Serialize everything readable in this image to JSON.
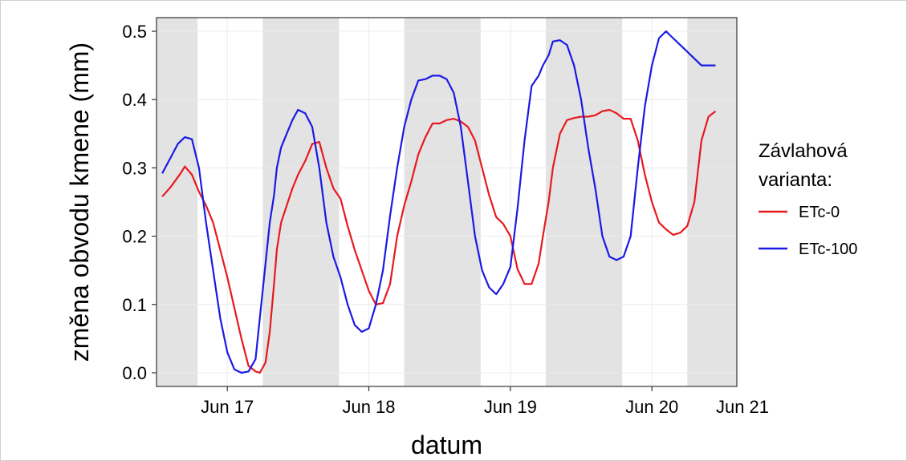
{
  "chart_data": {
    "type": "line",
    "xlabel": "datum",
    "ylabel": "změna obvodu kmene (mm)",
    "ylim": [
      -0.02,
      0.52
    ],
    "xlim": [
      0,
      4.1
    ],
    "y_ticks": [
      0.0,
      0.1,
      0.2,
      0.3,
      0.4,
      0.5
    ],
    "y_tick_labels": [
      "0.0",
      "0.1",
      "0.2",
      "0.3",
      "0.4",
      "0.5"
    ],
    "x_ticks": [
      0.5,
      1.5,
      2.5,
      3.5,
      4.5
    ],
    "x_tick_labels": [
      "Jun 17",
      "Jun 18",
      "Jun 19",
      "Jun 20",
      "Jun 21"
    ],
    "shaded_intervals": [
      [
        0,
        0.29
      ],
      [
        0.75,
        1.29
      ],
      [
        1.75,
        2.29
      ],
      [
        2.75,
        3.29
      ],
      [
        3.75,
        4.1
      ]
    ],
    "shade_color": "#e3e3e3",
    "legend": {
      "title_lines": [
        "Závlahová",
        "varianta:"
      ],
      "placement": "right"
    },
    "series": [
      {
        "name": "ETc-0",
        "color": "#e8191e",
        "x": [
          0.04,
          0.1,
          0.17,
          0.2,
          0.25,
          0.3,
          0.35,
          0.4,
          0.45,
          0.5,
          0.55,
          0.6,
          0.65,
          0.7,
          0.73,
          0.77,
          0.8,
          0.83,
          0.85,
          0.88,
          0.92,
          0.96,
          1.0,
          1.05,
          1.1,
          1.15,
          1.2,
          1.25,
          1.3,
          1.35,
          1.4,
          1.45,
          1.5,
          1.55,
          1.6,
          1.65,
          1.7,
          1.75,
          1.8,
          1.85,
          1.9,
          1.95,
          2.0,
          2.05,
          2.1,
          2.15,
          2.2,
          2.25,
          2.3,
          2.35,
          2.4,
          2.45,
          2.5,
          2.55,
          2.6,
          2.65,
          2.7,
          2.73,
          2.77,
          2.8,
          2.85,
          2.9,
          2.95,
          3.0,
          3.05,
          3.1,
          3.15,
          3.2,
          3.25,
          3.3,
          3.35,
          3.4,
          3.45,
          3.5,
          3.55,
          3.6,
          3.65,
          3.7,
          3.75,
          3.8,
          3.85,
          3.9,
          3.95
        ],
        "values": [
          0.258,
          0.272,
          0.292,
          0.302,
          0.29,
          0.265,
          0.245,
          0.22,
          0.18,
          0.14,
          0.095,
          0.05,
          0.01,
          0.002,
          0.0,
          0.015,
          0.06,
          0.13,
          0.18,
          0.22,
          0.245,
          0.27,
          0.29,
          0.31,
          0.335,
          0.338,
          0.3,
          0.27,
          0.255,
          0.215,
          0.18,
          0.15,
          0.12,
          0.1,
          0.102,
          0.13,
          0.2,
          0.245,
          0.28,
          0.32,
          0.345,
          0.365,
          0.365,
          0.37,
          0.372,
          0.368,
          0.36,
          0.34,
          0.3,
          0.26,
          0.228,
          0.218,
          0.2,
          0.152,
          0.13,
          0.13,
          0.16,
          0.2,
          0.25,
          0.3,
          0.35,
          0.37,
          0.373,
          0.375,
          0.375,
          0.377,
          0.383,
          0.385,
          0.38,
          0.372,
          0.372,
          0.34,
          0.29,
          0.25,
          0.22,
          0.21,
          0.202,
          0.205,
          0.215,
          0.25,
          0.34,
          0.375,
          0.383
        ]
      },
      {
        "name": "ETc-100",
        "color": "#1a1ae6",
        "x": [
          0.04,
          0.1,
          0.15,
          0.2,
          0.25,
          0.3,
          0.35,
          0.4,
          0.45,
          0.5,
          0.55,
          0.6,
          0.65,
          0.7,
          0.73,
          0.77,
          0.8,
          0.83,
          0.85,
          0.88,
          0.92,
          0.96,
          1.0,
          1.05,
          1.1,
          1.15,
          1.2,
          1.25,
          1.3,
          1.35,
          1.4,
          1.45,
          1.5,
          1.55,
          1.6,
          1.65,
          1.7,
          1.75,
          1.8,
          1.85,
          1.9,
          1.95,
          2.0,
          2.05,
          2.1,
          2.15,
          2.2,
          2.25,
          2.3,
          2.35,
          2.4,
          2.45,
          2.5,
          2.55,
          2.6,
          2.65,
          2.7,
          2.73,
          2.77,
          2.8,
          2.85,
          2.9,
          2.95,
          3.0,
          3.05,
          3.1,
          3.15,
          3.2,
          3.25,
          3.3,
          3.35,
          3.4,
          3.45,
          3.5,
          3.55,
          3.6,
          3.65,
          3.7,
          3.75,
          3.8,
          3.85,
          3.9,
          3.95
        ],
        "values": [
          0.292,
          0.315,
          0.335,
          0.345,
          0.342,
          0.3,
          0.22,
          0.15,
          0.08,
          0.03,
          0.005,
          0.0,
          0.002,
          0.02,
          0.08,
          0.16,
          0.22,
          0.26,
          0.3,
          0.33,
          0.35,
          0.37,
          0.385,
          0.38,
          0.36,
          0.3,
          0.22,
          0.17,
          0.14,
          0.1,
          0.07,
          0.06,
          0.065,
          0.1,
          0.15,
          0.23,
          0.3,
          0.36,
          0.4,
          0.428,
          0.43,
          0.435,
          0.435,
          0.43,
          0.41,
          0.36,
          0.28,
          0.2,
          0.15,
          0.125,
          0.115,
          0.13,
          0.155,
          0.24,
          0.34,
          0.42,
          0.435,
          0.45,
          0.465,
          0.485,
          0.487,
          0.48,
          0.45,
          0.4,
          0.33,
          0.27,
          0.2,
          0.17,
          0.165,
          0.17,
          0.2,
          0.3,
          0.39,
          0.45,
          0.49,
          0.5,
          0.49,
          0.48,
          0.47,
          0.46,
          0.45,
          0.45,
          0.45
        ]
      }
    ]
  }
}
